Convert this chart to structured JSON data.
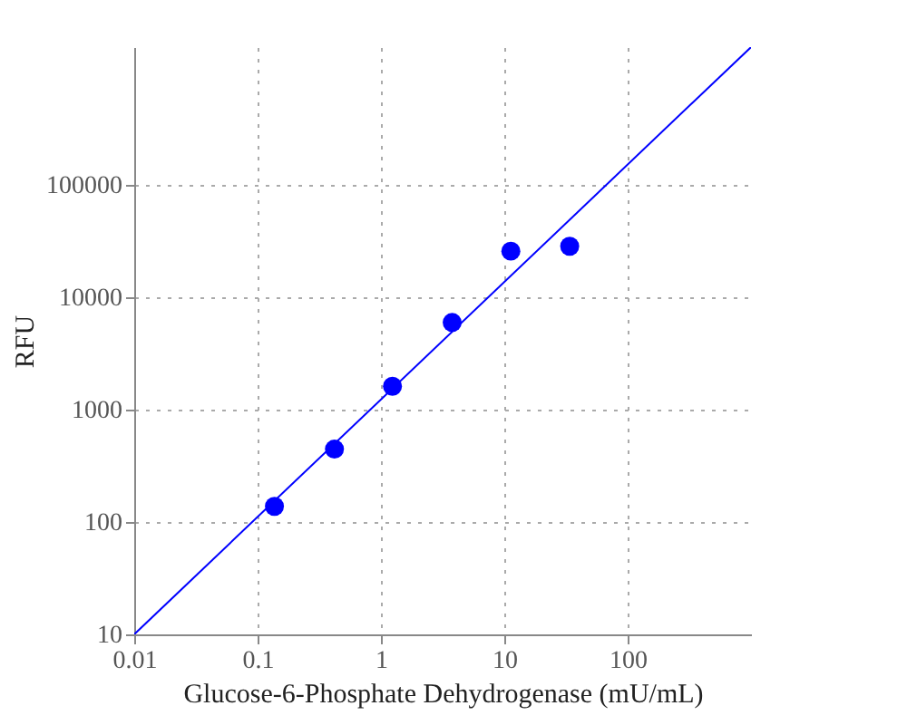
{
  "chart_data": {
    "type": "scatter",
    "xlabel": "Glucose-6-Phosphate Dehydrogenase (mU/mL)",
    "ylabel": "RFU",
    "log": "xy",
    "grid": true,
    "marker": "circle",
    "xlim": [
      0.01,
      1000
    ],
    "ylim": [
      10,
      1700000
    ],
    "xticks": [
      0.01,
      0.1,
      1,
      10,
      100
    ],
    "yticks": [
      10,
      100,
      1000,
      10000,
      100000
    ],
    "series": [
      {
        "color": "#0000ff",
        "x": [
          0.137,
          0.42,
          1.24,
          3.78,
          11.3,
          33.9
        ],
        "values": [
          138,
          447,
          1620,
          6000,
          25900,
          28600
        ]
      },
      {
        "type": "line",
        "color": "#0000ff",
        "line_style": "solid",
        "marker": "none",
        "x": [
          0.01,
          1000
        ],
        "values": [
          10,
          1700000
        ]
      }
    ]
  }
}
